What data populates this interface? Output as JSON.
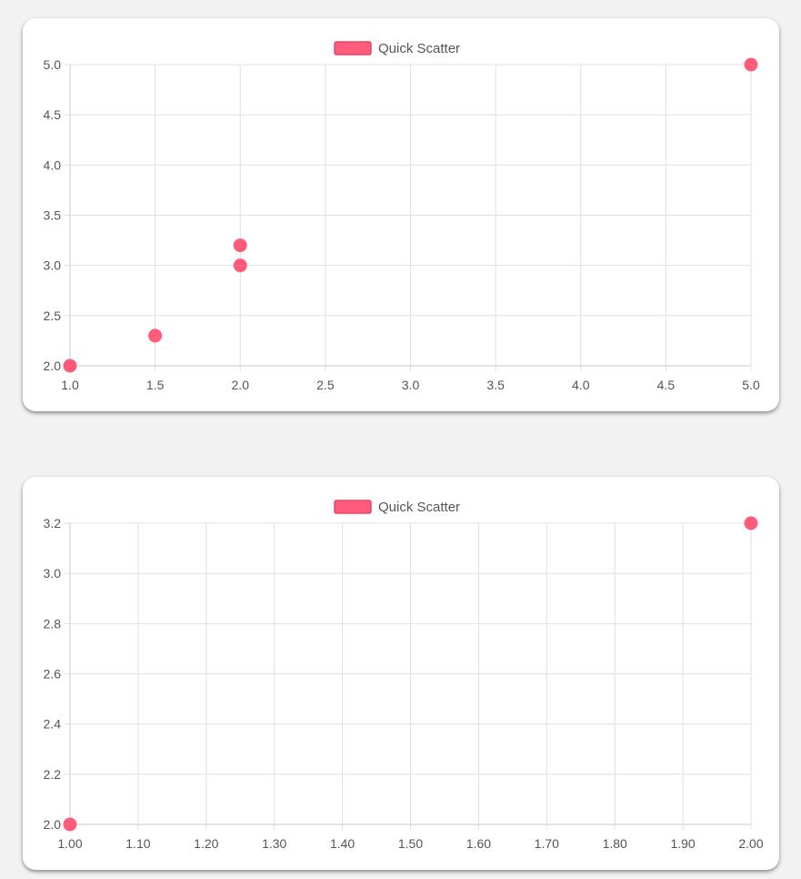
{
  "colors": {
    "point_fill": "#ff5c7c",
    "legend_fill": "#ff5c7c",
    "legend_border": "#e8456a"
  },
  "chart_data": [
    {
      "type": "scatter",
      "legend": "Quick Scatter",
      "legend_position": "top",
      "grid": true,
      "xlim": [
        1.0,
        5.0
      ],
      "ylim": [
        2.0,
        5.0
      ],
      "x_ticks": [
        1.0,
        1.5,
        2.0,
        2.5,
        3.0,
        3.5,
        4.0,
        4.5,
        5.0
      ],
      "y_ticks": [
        2.0,
        2.5,
        3.0,
        3.5,
        4.0,
        4.5,
        5.0
      ],
      "x_tick_labels": [
        "1.0",
        "1.5",
        "2.0",
        "2.5",
        "3.0",
        "3.5",
        "4.0",
        "4.5",
        "5.0"
      ],
      "y_tick_labels": [
        "2.0",
        "2.5",
        "3.0",
        "3.5",
        "4.0",
        "4.5",
        "5.0"
      ],
      "series": [
        {
          "name": "Quick Scatter",
          "points": [
            {
              "x": 1.0,
              "y": 2.0
            },
            {
              "x": 1.5,
              "y": 2.3
            },
            {
              "x": 2.0,
              "y": 3.0
            },
            {
              "x": 2.0,
              "y": 3.2
            },
            {
              "x": 5.0,
              "y": 5.0
            }
          ]
        }
      ]
    },
    {
      "type": "scatter",
      "legend": "Quick Scatter",
      "legend_position": "top",
      "grid": true,
      "xlim": [
        1.0,
        2.0
      ],
      "ylim": [
        2.0,
        3.2
      ],
      "x_ticks": [
        1.0,
        1.1,
        1.2,
        1.3,
        1.4,
        1.5,
        1.6,
        1.7,
        1.8,
        1.9,
        2.0
      ],
      "y_ticks": [
        2.0,
        2.2,
        2.4,
        2.6,
        2.8,
        3.0,
        3.2
      ],
      "x_tick_labels": [
        "1.00",
        "1.10",
        "1.20",
        "1.30",
        "1.40",
        "1.50",
        "1.60",
        "1.70",
        "1.80",
        "1.90",
        "2.00"
      ],
      "y_tick_labels": [
        "2.0",
        "2.2",
        "2.4",
        "2.6",
        "2.8",
        "3.0",
        "3.2"
      ],
      "series": [
        {
          "name": "Quick Scatter",
          "points": [
            {
              "x": 1.0,
              "y": 2.0
            },
            {
              "x": 2.0,
              "y": 3.2
            }
          ]
        }
      ]
    }
  ]
}
